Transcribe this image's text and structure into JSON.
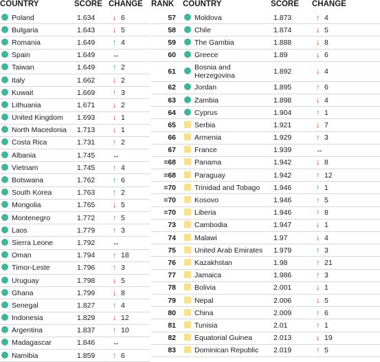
{
  "headers": {
    "rank": "RANK",
    "country": "COUNTRY",
    "score": "SCORE",
    "change": "CHANGE"
  },
  "colors": {
    "circle_marker": "#3fb59a",
    "square_marker": "#fbe08a",
    "up": "#3aa657",
    "down": "#d72a2a"
  },
  "icons": {
    "up": "arrow-up-icon",
    "down": "arrow-down-icon",
    "same": "no-change-icon",
    "circle": "teal-circle-icon",
    "square": "yellow-square-icon"
  },
  "left_rows": [
    {
      "country": "Poland",
      "score": "1.634",
      "dir": "down",
      "change": "6",
      "marker": "circle"
    },
    {
      "country": "Bulgaria",
      "score": "1.643",
      "dir": "down",
      "change": "5",
      "marker": "circle"
    },
    {
      "country": "Romania",
      "score": "1.649",
      "dir": "up",
      "change": "4",
      "marker": "circle"
    },
    {
      "country": "Spain",
      "score": "1.649",
      "dir": "same",
      "change": "",
      "marker": "circle"
    },
    {
      "country": "Taiwan",
      "score": "1.649",
      "dir": "up",
      "change": "2",
      "marker": "circle"
    },
    {
      "country": "Italy",
      "score": "1.662",
      "dir": "down",
      "change": "2",
      "marker": "circle"
    },
    {
      "country": "Kuwait",
      "score": "1.669",
      "dir": "up",
      "change": "3",
      "marker": "circle"
    },
    {
      "country": "Lithuania",
      "score": "1.671",
      "dir": "down",
      "change": "2",
      "marker": "circle"
    },
    {
      "country": "United Kingdom",
      "score": "1.693",
      "dir": "down",
      "change": "1",
      "marker": "circle"
    },
    {
      "country": "North Macedonia",
      "score": "1.713",
      "dir": "down",
      "change": "1",
      "marker": "circle"
    },
    {
      "country": "Costa Rica",
      "score": "1.731",
      "dir": "up",
      "change": "2",
      "marker": "circle"
    },
    {
      "country": "Albania",
      "score": "1.745",
      "dir": "same",
      "change": "",
      "marker": "circle"
    },
    {
      "country": "Vietnam",
      "score": "1.745",
      "dir": "up",
      "change": "4",
      "marker": "circle"
    },
    {
      "country": "Botswana",
      "score": "1.762",
      "dir": "up",
      "change": "6",
      "marker": "circle"
    },
    {
      "country": "South Korea",
      "score": "1.763",
      "dir": "up",
      "change": "2",
      "marker": "circle"
    },
    {
      "country": "Mongolia",
      "score": "1.765",
      "dir": "down",
      "change": "5",
      "marker": "circle"
    },
    {
      "country": "Montenegro",
      "score": "1.772",
      "dir": "up",
      "change": "5",
      "marker": "circle"
    },
    {
      "country": "Laos",
      "score": "1.779",
      "dir": "up",
      "change": "3",
      "marker": "circle"
    },
    {
      "country": "Sierra Leone",
      "score": "1.792",
      "dir": "same",
      "change": "",
      "marker": "circle"
    },
    {
      "country": "Oman",
      "score": "1.794",
      "dir": "up",
      "change": "18",
      "marker": "circle"
    },
    {
      "country": "Timor-Leste",
      "score": "1.796",
      "dir": "up",
      "change": "3",
      "marker": "circle"
    },
    {
      "country": "Uruguay",
      "score": "1.798",
      "dir": "down",
      "change": "5",
      "marker": "circle"
    },
    {
      "country": "Ghana",
      "score": "1.799",
      "dir": "down",
      "change": "8",
      "marker": "circle"
    },
    {
      "country": "Senegal",
      "score": "1.827",
      "dir": "up",
      "change": "4",
      "marker": "circle"
    },
    {
      "country": "Indonesia",
      "score": "1.829",
      "dir": "down",
      "change": "12",
      "marker": "circle"
    },
    {
      "country": "Argentina",
      "score": "1.837",
      "dir": "up",
      "change": "10",
      "marker": "circle"
    },
    {
      "country": "Madagascar",
      "score": "1.846",
      "dir": "same",
      "change": "",
      "marker": "circle"
    },
    {
      "country": "Namibia",
      "score": "1.859",
      "dir": "up",
      "change": "6",
      "marker": "circle"
    }
  ],
  "right_rows": [
    {
      "rank": "57",
      "country": "Moldova",
      "score": "1.873",
      "dir": "up",
      "change": "4",
      "marker": "circle"
    },
    {
      "rank": "58",
      "country": "Chile",
      "score": "1.874",
      "dir": "down",
      "change": "5",
      "marker": "circle"
    },
    {
      "rank": "59",
      "country": "The Gambia",
      "score": "1.888",
      "dir": "down",
      "change": "8",
      "marker": "circle"
    },
    {
      "rank": "60",
      "country": "Greece",
      "score": "1.89",
      "dir": "down",
      "change": "6",
      "marker": "circle"
    },
    {
      "rank": "61",
      "country": "Bosnia and Herzegovina",
      "score": "1.892",
      "dir": "down",
      "change": "4",
      "marker": "circle",
      "tall": true
    },
    {
      "rank": "62",
      "country": "Jordan",
      "score": "1.895",
      "dir": "up",
      "change": "6",
      "marker": "circle"
    },
    {
      "rank": "63",
      "country": "Zambia",
      "score": "1.898",
      "dir": "down",
      "change": "4",
      "marker": "circle"
    },
    {
      "rank": "64",
      "country": "Cyprus",
      "score": "1.904",
      "dir": "up",
      "change": "1",
      "marker": "circle"
    },
    {
      "rank": "65",
      "country": "Serbia",
      "score": "1.921",
      "dir": "down",
      "change": "7",
      "marker": "square"
    },
    {
      "rank": "66",
      "country": "Armenia",
      "score": "1.929",
      "dir": "up",
      "change": "3",
      "marker": "square"
    },
    {
      "rank": "67",
      "country": "France",
      "score": "1.939",
      "dir": "same",
      "change": "",
      "marker": "square"
    },
    {
      "rank": "=68",
      "country": "Panama",
      "score": "1.942",
      "dir": "down",
      "change": "8",
      "marker": "square"
    },
    {
      "rank": "=68",
      "country": "Paraguay",
      "score": "1.942",
      "dir": "up",
      "change": "12",
      "marker": "square"
    },
    {
      "rank": "=70",
      "country": "Trinidad and Tobago",
      "score": "1.946",
      "dir": "up",
      "change": "1",
      "marker": "square"
    },
    {
      "rank": "=70",
      "country": "Kosovo",
      "score": "1.946",
      "dir": "up",
      "change": "5",
      "marker": "square"
    },
    {
      "rank": "=70",
      "country": "Liberia",
      "score": "1.946",
      "dir": "up",
      "change": "8",
      "marker": "square"
    },
    {
      "rank": "73",
      "country": "Cambodia",
      "score": "1.947",
      "dir": "down",
      "change": "1",
      "marker": "square"
    },
    {
      "rank": "74",
      "country": "Malawi",
      "score": "1.97",
      "dir": "down",
      "change": "4",
      "marker": "square"
    },
    {
      "rank": "75",
      "country": "United Arab Emirates",
      "score": "1.979",
      "dir": "up",
      "change": "3",
      "marker": "square"
    },
    {
      "rank": "76",
      "country": "Kazakhstan",
      "score": "1.98",
      "dir": "up",
      "change": "21",
      "marker": "square"
    },
    {
      "rank": "77",
      "country": "Jamaica",
      "score": "1.986",
      "dir": "up",
      "change": "3",
      "marker": "square"
    },
    {
      "rank": "78",
      "country": "Bolivia",
      "score": "2.001",
      "dir": "down",
      "change": "1",
      "marker": "square"
    },
    {
      "rank": "79",
      "country": "Nepal",
      "score": "2.006",
      "dir": "down",
      "change": "5",
      "marker": "square"
    },
    {
      "rank": "80",
      "country": "China",
      "score": "2.009",
      "dir": "up",
      "change": "6",
      "marker": "square"
    },
    {
      "rank": "81",
      "country": "Tunisia",
      "score": "2.01",
      "dir": "up",
      "change": "1",
      "marker": "square"
    },
    {
      "rank": "82",
      "country": "Equatorial Guinea",
      "score": "2.013",
      "dir": "down",
      "change": "19",
      "marker": "square"
    },
    {
      "rank": "83",
      "country": "Dominican Republic",
      "score": "2.019",
      "dir": "up",
      "change": "5",
      "marker": "square"
    }
  ]
}
